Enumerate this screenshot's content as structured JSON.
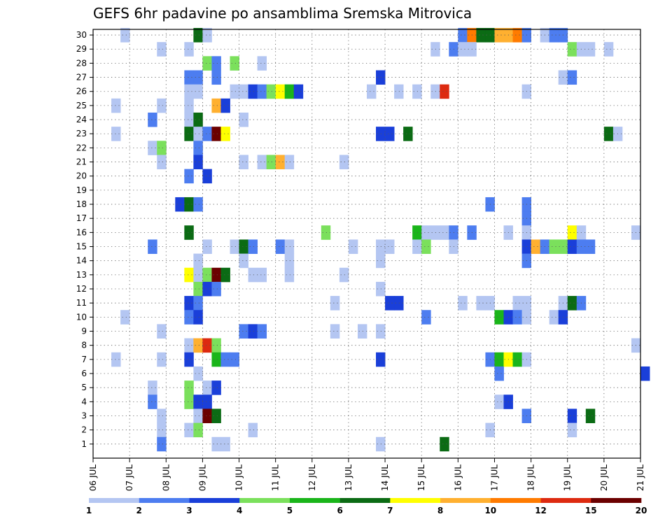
{
  "title": "GEFS 6hr padavine po ansamblima Sremska Mitrovica",
  "chart_data": {
    "type": "heatmap",
    "x_unit": "6-hour step",
    "x_range": [
      0,
      60
    ],
    "y_range": [
      0,
      30
    ],
    "y_ticks": [
      1,
      2,
      3,
      4,
      5,
      6,
      7,
      8,
      9,
      10,
      11,
      12,
      13,
      14,
      15,
      16,
      17,
      18,
      19,
      20,
      21,
      22,
      23,
      24,
      25,
      26,
      27,
      28,
      29,
      30
    ],
    "x_ticks": [
      {
        "step": 0,
        "label": "06 JUL"
      },
      {
        "step": 4,
        "label": "07 JUL"
      },
      {
        "step": 8,
        "label": "08 JUL"
      },
      {
        "step": 12,
        "label": "09 JUL"
      },
      {
        "step": 16,
        "label": "10 JUL"
      },
      {
        "step": 20,
        "label": "11 JUL"
      },
      {
        "step": 24,
        "label": "12 JUL"
      },
      {
        "step": 28,
        "label": "13 JUL"
      },
      {
        "step": 32,
        "label": "14 JUL"
      },
      {
        "step": 36,
        "label": "15 JUL"
      },
      {
        "step": 40,
        "label": "16 JUL"
      },
      {
        "step": 44,
        "label": "17 JUL"
      },
      {
        "step": 48,
        "label": "18 JUL"
      },
      {
        "step": 52,
        "label": "19 JUL"
      },
      {
        "step": 56,
        "label": "20 JUL"
      },
      {
        "step": 60,
        "label": "21 JUL"
      }
    ],
    "grid": true,
    "colorbar": {
      "labels": [
        "1",
        "2",
        "3",
        "4",
        "5",
        "6",
        "7",
        "8",
        "10",
        "12",
        "15",
        "20"
      ],
      "colors": [
        "#b4c6f2",
        "#4d7df0",
        "#1a3fd9",
        "#7be05c",
        "#1ab51a",
        "#0b6b14",
        "#ffff00",
        "#ffb030",
        "#ff7b00",
        "#dd2a10",
        "#6b0000"
      ]
    },
    "cells": [
      [
        3,
        30,
        0
      ],
      [
        11,
        30,
        5
      ],
      [
        12,
        30,
        0
      ],
      [
        40,
        30,
        1
      ],
      [
        41,
        30,
        8
      ],
      [
        42,
        30,
        5
      ],
      [
        43,
        30,
        5
      ],
      [
        44,
        30,
        7
      ],
      [
        45,
        30,
        7
      ],
      [
        46,
        30,
        8
      ],
      [
        47,
        30,
        1
      ],
      [
        49,
        30,
        0
      ],
      [
        50,
        30,
        1
      ],
      [
        51,
        30,
        1
      ],
      [
        7,
        29,
        0
      ],
      [
        10,
        29,
        0
      ],
      [
        37,
        29,
        0
      ],
      [
        39,
        29,
        1
      ],
      [
        40,
        29,
        0
      ],
      [
        41,
        29,
        0
      ],
      [
        52,
        29,
        3
      ],
      [
        53,
        29,
        0
      ],
      [
        54,
        29,
        0
      ],
      [
        56,
        29,
        0
      ],
      [
        12,
        28,
        3
      ],
      [
        13,
        28,
        1
      ],
      [
        15,
        28,
        3
      ],
      [
        18,
        28,
        0
      ],
      [
        10,
        27,
        1
      ],
      [
        11,
        27,
        1
      ],
      [
        13,
        27,
        1
      ],
      [
        31,
        27,
        2
      ],
      [
        51,
        27,
        0
      ],
      [
        52,
        27,
        1
      ],
      [
        10,
        26,
        0
      ],
      [
        11,
        26,
        0
      ],
      [
        15,
        26,
        0
      ],
      [
        16,
        26,
        0
      ],
      [
        17,
        26,
        2
      ],
      [
        18,
        26,
        1
      ],
      [
        19,
        26,
        3
      ],
      [
        20,
        26,
        6
      ],
      [
        21,
        26,
        4
      ],
      [
        22,
        26,
        2
      ],
      [
        30,
        26,
        0
      ],
      [
        33,
        26,
        0
      ],
      [
        35,
        26,
        0
      ],
      [
        37,
        26,
        0
      ],
      [
        38,
        26,
        9
      ],
      [
        47,
        26,
        0
      ],
      [
        2,
        25,
        0
      ],
      [
        7,
        25,
        0
      ],
      [
        10,
        25,
        0
      ],
      [
        13,
        25,
        7
      ],
      [
        14,
        25,
        2
      ],
      [
        6,
        24,
        1
      ],
      [
        10,
        24,
        0
      ],
      [
        11,
        24,
        5
      ],
      [
        16,
        24,
        0
      ],
      [
        2,
        23,
        0
      ],
      [
        10,
        23,
        5
      ],
      [
        11,
        23,
        0
      ],
      [
        12,
        23,
        1
      ],
      [
        13,
        23,
        10
      ],
      [
        14,
        23,
        6
      ],
      [
        31,
        23,
        2
      ],
      [
        32,
        23,
        2
      ],
      [
        34,
        23,
        5
      ],
      [
        56,
        23,
        5
      ],
      [
        57,
        23,
        0
      ],
      [
        6,
        22,
        0
      ],
      [
        7,
        22,
        3
      ],
      [
        11,
        22,
        1
      ],
      [
        7,
        21,
        0
      ],
      [
        11,
        21,
        2
      ],
      [
        16,
        21,
        0
      ],
      [
        18,
        21,
        0
      ],
      [
        19,
        21,
        3
      ],
      [
        20,
        21,
        7
      ],
      [
        21,
        21,
        0
      ],
      [
        27,
        21,
        0
      ],
      [
        10,
        20,
        1
      ],
      [
        12,
        20,
        2
      ],
      [
        9,
        18,
        2
      ],
      [
        10,
        18,
        5
      ],
      [
        11,
        18,
        1
      ],
      [
        43,
        18,
        1
      ],
      [
        47,
        18,
        1
      ],
      [
        47,
        17,
        1
      ],
      [
        10,
        16,
        5
      ],
      [
        25,
        16,
        3
      ],
      [
        35,
        16,
        4
      ],
      [
        36,
        16,
        0
      ],
      [
        37,
        16,
        0
      ],
      [
        38,
        16,
        0
      ],
      [
        39,
        16,
        1
      ],
      [
        41,
        16,
        1
      ],
      [
        45,
        16,
        0
      ],
      [
        47,
        16,
        0
      ],
      [
        52,
        16,
        6
      ],
      [
        53,
        16,
        0
      ],
      [
        59,
        16,
        0
      ],
      [
        6,
        15,
        1
      ],
      [
        12,
        15,
        0
      ],
      [
        15,
        15,
        0
      ],
      [
        16,
        15,
        5
      ],
      [
        17,
        15,
        1
      ],
      [
        20,
        15,
        1
      ],
      [
        21,
        15,
        0
      ],
      [
        28,
        15,
        0
      ],
      [
        31,
        15,
        0
      ],
      [
        32,
        15,
        0
      ],
      [
        35,
        15,
        0
      ],
      [
        36,
        15,
        3
      ],
      [
        39,
        15,
        0
      ],
      [
        47,
        15,
        2
      ],
      [
        48,
        15,
        7
      ],
      [
        49,
        15,
        1
      ],
      [
        50,
        15,
        3
      ],
      [
        51,
        15,
        3
      ],
      [
        52,
        15,
        2
      ],
      [
        53,
        15,
        1
      ],
      [
        54,
        15,
        1
      ],
      [
        11,
        14,
        0
      ],
      [
        16,
        14,
        0
      ],
      [
        21,
        14,
        0
      ],
      [
        31,
        14,
        0
      ],
      [
        47,
        14,
        1
      ],
      [
        10,
        13,
        6
      ],
      [
        11,
        13,
        0
      ],
      [
        12,
        13,
        3
      ],
      [
        13,
        13,
        10
      ],
      [
        14,
        13,
        5
      ],
      [
        17,
        13,
        0
      ],
      [
        18,
        13,
        0
      ],
      [
        21,
        13,
        0
      ],
      [
        27,
        13,
        0
      ],
      [
        11,
        12,
        3
      ],
      [
        12,
        12,
        2
      ],
      [
        13,
        12,
        1
      ],
      [
        31,
        12,
        0
      ],
      [
        10,
        11,
        2
      ],
      [
        11,
        11,
        1
      ],
      [
        26,
        11,
        0
      ],
      [
        32,
        11,
        2
      ],
      [
        33,
        11,
        2
      ],
      [
        40,
        11,
        0
      ],
      [
        42,
        11,
        0
      ],
      [
        43,
        11,
        0
      ],
      [
        46,
        11,
        0
      ],
      [
        47,
        11,
        0
      ],
      [
        51,
        11,
        0
      ],
      [
        52,
        11,
        5
      ],
      [
        53,
        11,
        1
      ],
      [
        3,
        10,
        0
      ],
      [
        10,
        10,
        1
      ],
      [
        11,
        10,
        2
      ],
      [
        36,
        10,
        1
      ],
      [
        44,
        10,
        4
      ],
      [
        45,
        10,
        2
      ],
      [
        46,
        10,
        1
      ],
      [
        47,
        10,
        0
      ],
      [
        50,
        10,
        0
      ],
      [
        51,
        10,
        2
      ],
      [
        7,
        9,
        0
      ],
      [
        16,
        9,
        1
      ],
      [
        17,
        9,
        2
      ],
      [
        18,
        9,
        1
      ],
      [
        26,
        9,
        0
      ],
      [
        29,
        9,
        0
      ],
      [
        31,
        9,
        0
      ],
      [
        10,
        8,
        0
      ],
      [
        11,
        8,
        7
      ],
      [
        12,
        8,
        9
      ],
      [
        13,
        8,
        3
      ],
      [
        59,
        8,
        0
      ],
      [
        2,
        7,
        0
      ],
      [
        7,
        7,
        0
      ],
      [
        10,
        7,
        2
      ],
      [
        13,
        7,
        4
      ],
      [
        14,
        7,
        1
      ],
      [
        15,
        7,
        1
      ],
      [
        31,
        7,
        2
      ],
      [
        43,
        7,
        1
      ],
      [
        44,
        7,
        4
      ],
      [
        45,
        7,
        6
      ],
      [
        46,
        7,
        4
      ],
      [
        47,
        7,
        0
      ],
      [
        11,
        6,
        0
      ],
      [
        44,
        6,
        1
      ],
      [
        60,
        6,
        2
      ],
      [
        6,
        5,
        0
      ],
      [
        10,
        5,
        3
      ],
      [
        12,
        5,
        0
      ],
      [
        13,
        5,
        2
      ],
      [
        6,
        4,
        1
      ],
      [
        10,
        4,
        3
      ],
      [
        11,
        4,
        2
      ],
      [
        12,
        4,
        2
      ],
      [
        44,
        4,
        0
      ],
      [
        45,
        4,
        2
      ],
      [
        7,
        3,
        0
      ],
      [
        11,
        3,
        0
      ],
      [
        12,
        3,
        10
      ],
      [
        13,
        3,
        5
      ],
      [
        47,
        3,
        1
      ],
      [
        52,
        3,
        2
      ],
      [
        54,
        3,
        5
      ],
      [
        7,
        2,
        0
      ],
      [
        10,
        2,
        0
      ],
      [
        11,
        2,
        3
      ],
      [
        17,
        2,
        0
      ],
      [
        43,
        2,
        0
      ],
      [
        52,
        2,
        0
      ],
      [
        7,
        1,
        1
      ],
      [
        13,
        1,
        0
      ],
      [
        14,
        1,
        0
      ],
      [
        31,
        1,
        0
      ],
      [
        38,
        1,
        5
      ]
    ]
  }
}
